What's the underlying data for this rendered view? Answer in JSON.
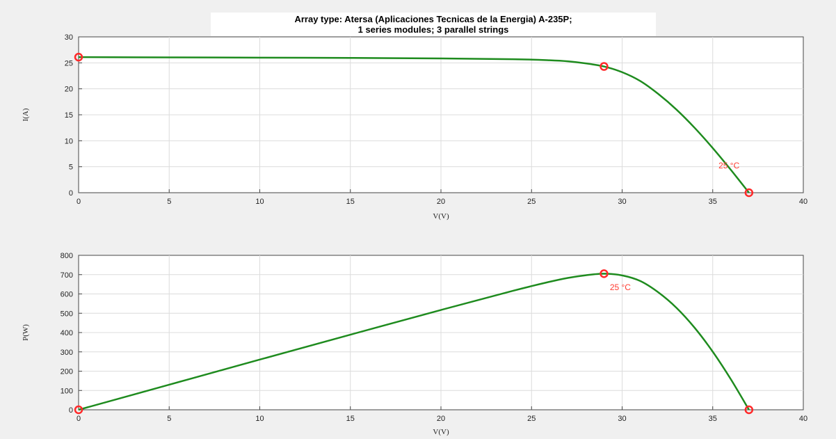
{
  "title_line1": "Array type: Atersa (Aplicaciones Tecnicas de la Energia) A-235P;",
  "title_line2": "1 series modules; 3 parallel strings",
  "colors": {
    "curve": "#1e8b1e",
    "marker": "#ff2a2a",
    "annotation": "#ff3b30",
    "grid": "#dcdcdc",
    "plot_bg": "#ffffff",
    "figure_bg": "#f0f0f0"
  },
  "chart_data": [
    {
      "type": "line",
      "xlabel": "V(V)",
      "ylabel": "I(A)",
      "xlim": [
        0,
        40
      ],
      "ylim": [
        0,
        30
      ],
      "xticks": [
        0,
        5,
        10,
        15,
        20,
        25,
        30,
        35,
        40
      ],
      "yticks": [
        0,
        5,
        10,
        15,
        20,
        25,
        30
      ],
      "grid": true,
      "series": [
        {
          "x": [
            0,
            5,
            10,
            15,
            20,
            24,
            26,
            27,
            28,
            29,
            30,
            31,
            32,
            33,
            34,
            35,
            36,
            37
          ],
          "y": [
            26.1,
            26.05,
            26.0,
            25.95,
            25.85,
            25.7,
            25.5,
            25.3,
            24.9,
            24.3,
            23.2,
            21.5,
            19.0,
            16.0,
            12.5,
            8.6,
            4.4,
            0
          ]
        }
      ],
      "markers": [
        {
          "x": 0,
          "y": 26.1
        },
        {
          "x": 29.0,
          "y": 24.3
        },
        {
          "x": 37.0,
          "y": 0
        }
      ],
      "annotation": {
        "text": "25 °C",
        "x": 35.9,
        "y": 4.7
      }
    },
    {
      "type": "line",
      "xlabel": "V(V)",
      "ylabel": "P(W)",
      "xlim": [
        0,
        40
      ],
      "ylim": [
        0,
        800
      ],
      "xticks": [
        0,
        5,
        10,
        15,
        20,
        25,
        30,
        35,
        40
      ],
      "yticks": [
        0,
        100,
        200,
        300,
        400,
        500,
        600,
        700,
        800
      ],
      "grid": true,
      "series": [
        {
          "x": [
            0,
            5,
            10,
            15,
            20,
            24,
            26,
            27,
            28,
            29,
            30,
            31,
            32,
            33,
            34,
            35,
            36,
            37
          ],
          "y": [
            0,
            130,
            260,
            389,
            517,
            617,
            663,
            683,
            697,
            705,
            696,
            667,
            608,
            528,
            425,
            301,
            158,
            0
          ]
        }
      ],
      "markers": [
        {
          "x": 0,
          "y": 0
        },
        {
          "x": 29.0,
          "y": 705
        },
        {
          "x": 37.0,
          "y": 0
        }
      ],
      "annotation": {
        "text": "25 °C",
        "x": 29.9,
        "y": 620
      }
    }
  ]
}
